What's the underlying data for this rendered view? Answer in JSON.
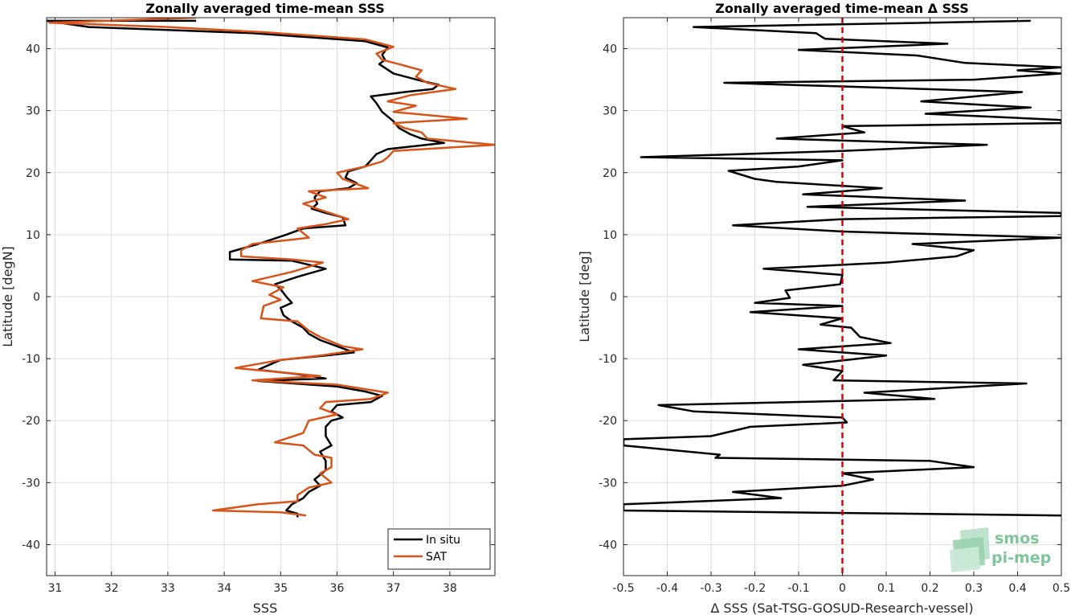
{
  "chart_data": [
    {
      "type": "line",
      "title": "Zonally averaged time-mean SSS",
      "xlabel": "SSS",
      "ylabel": "Latitude [degN]",
      "xlim": [
        30.85,
        38.8
      ],
      "ylim": [
        -45,
        45
      ],
      "xticks": [
        31,
        32,
        33,
        34,
        35,
        36,
        37,
        38
      ],
      "yticks": [
        -40,
        -30,
        -20,
        -10,
        0,
        10,
        20,
        30,
        40
      ],
      "grid": true,
      "legend": {
        "position": "bottom-right",
        "entries": [
          "In situ",
          "SAT"
        ]
      },
      "series": [
        {
          "name": "In situ",
          "color": "#000000",
          "points": [
            [
              33.5,
              44.5
            ],
            [
              30.85,
              44.5
            ],
            [
              31.6,
              43.5
            ],
            [
              34.5,
              42.5
            ],
            [
              36.5,
              41.2
            ],
            [
              36.9,
              40.2
            ],
            [
              36.8,
              39.0
            ],
            [
              36.85,
              38.2
            ],
            [
              36.75,
              37.5
            ],
            [
              37.0,
              36.0
            ],
            [
              37.5,
              34.8
            ],
            [
              37.8,
              34.2
            ],
            [
              37.7,
              33.5
            ],
            [
              37.2,
              33.0
            ],
            [
              36.6,
              32.3
            ],
            [
              36.7,
              31.2
            ],
            [
              36.8,
              29.8
            ],
            [
              37.0,
              28.3
            ],
            [
              37.1,
              27.2
            ],
            [
              37.3,
              26.2
            ],
            [
              37.5,
              25.5
            ],
            [
              37.9,
              24.8
            ],
            [
              37.4,
              24.3
            ],
            [
              36.9,
              23.8
            ],
            [
              36.7,
              23.0
            ],
            [
              36.6,
              22.0
            ],
            [
              36.5,
              21.0
            ],
            [
              36.2,
              20.2
            ],
            [
              36.15,
              19.2
            ],
            [
              36.35,
              18.3
            ],
            [
              36.2,
              17.5
            ],
            [
              35.7,
              17.0
            ],
            [
              35.6,
              16.0
            ],
            [
              35.65,
              15.0
            ],
            [
              35.55,
              14.2
            ],
            [
              35.8,
              13.5
            ],
            [
              36.1,
              12.8
            ],
            [
              36.15,
              11.5
            ],
            [
              35.4,
              11.0
            ],
            [
              35.1,
              10.0
            ],
            [
              34.6,
              8.5
            ],
            [
              34.1,
              7.2
            ],
            [
              34.1,
              6.0
            ],
            [
              35.2,
              5.8
            ],
            [
              35.8,
              4.5
            ],
            [
              35.3,
              3.2
            ],
            [
              34.9,
              2.0
            ],
            [
              35.0,
              1.2
            ],
            [
              35.1,
              0.0
            ],
            [
              35.2,
              -1.0
            ],
            [
              35.0,
              -1.8
            ],
            [
              35.05,
              -3.0
            ],
            [
              35.2,
              -4.0
            ],
            [
              35.4,
              -5.0
            ],
            [
              35.5,
              -6.0
            ],
            [
              35.7,
              -7.0
            ],
            [
              36.0,
              -8.0
            ],
            [
              36.3,
              -9.0
            ],
            [
              35.8,
              -9.5
            ],
            [
              35.0,
              -10.2
            ],
            [
              34.8,
              -11.0
            ],
            [
              34.6,
              -11.8
            ],
            [
              35.3,
              -12.5
            ],
            [
              35.8,
              -13.2
            ],
            [
              34.6,
              -13.6
            ],
            [
              36.0,
              -14.5
            ],
            [
              36.5,
              -15.3
            ],
            [
              36.8,
              -16.0
            ],
            [
              36.6,
              -17.0
            ],
            [
              36.0,
              -17.5
            ],
            [
              35.9,
              -18.5
            ],
            [
              36.1,
              -19.5
            ],
            [
              35.9,
              -20.0
            ],
            [
              35.8,
              -21.0
            ],
            [
              35.8,
              -22.5
            ],
            [
              35.9,
              -24.0
            ],
            [
              35.7,
              -25.0
            ],
            [
              35.8,
              -26.5
            ],
            [
              35.8,
              -28.0
            ],
            [
              35.6,
              -29.5
            ],
            [
              35.7,
              -30.5
            ],
            [
              35.5,
              -31.5
            ],
            [
              35.4,
              -32.5
            ],
            [
              35.2,
              -33.5
            ],
            [
              35.1,
              -34.5
            ],
            [
              35.3,
              -35.0
            ],
            [
              35.3,
              -35.6
            ]
          ]
        },
        {
          "name": "SAT",
          "color": "#d95319",
          "points": [
            [
              33.5,
              45.0
            ],
            [
              30.9,
              44.2
            ],
            [
              33.0,
              43.5
            ],
            [
              34.8,
              42.6
            ],
            [
              36.5,
              41.5
            ],
            [
              37.0,
              40.3
            ],
            [
              36.7,
              39.2
            ],
            [
              36.8,
              38.2
            ],
            [
              37.1,
              37.5
            ],
            [
              37.5,
              36.5
            ],
            [
              37.4,
              35.5
            ],
            [
              37.6,
              34.5
            ],
            [
              38.1,
              33.5
            ],
            [
              37.3,
              32.5
            ],
            [
              36.9,
              31.5
            ],
            [
              37.4,
              30.8
            ],
            [
              37.0,
              29.8
            ],
            [
              38.3,
              28.7
            ],
            [
              37.0,
              28.0
            ],
            [
              37.2,
              27.2
            ],
            [
              37.5,
              26.5
            ],
            [
              37.6,
              25.5
            ],
            [
              38.8,
              24.5
            ],
            [
              37.0,
              23.5
            ],
            [
              36.9,
              22.5
            ],
            [
              36.8,
              21.8
            ],
            [
              36.5,
              21.0
            ],
            [
              36.0,
              20.0
            ],
            [
              36.1,
              19.0
            ],
            [
              36.55,
              17.5
            ],
            [
              35.5,
              17.0
            ],
            [
              35.8,
              16.0
            ],
            [
              35.4,
              15.0
            ],
            [
              35.6,
              14.3
            ],
            [
              36.2,
              12.5
            ],
            [
              35.8,
              11.7
            ],
            [
              35.3,
              11.0
            ],
            [
              35.5,
              9.5
            ],
            [
              34.5,
              8.5
            ],
            [
              34.3,
              7.5
            ],
            [
              34.3,
              6.5
            ],
            [
              35.2,
              6.0
            ],
            [
              35.75,
              5.5
            ],
            [
              35.2,
              4.0
            ],
            [
              34.5,
              2.5
            ],
            [
              35.05,
              1.5
            ],
            [
              34.8,
              0.3
            ],
            [
              35.0,
              -0.5
            ],
            [
              34.7,
              -1.5
            ],
            [
              34.65,
              -3.5
            ],
            [
              35.3,
              -4.0
            ],
            [
              35.5,
              -5.5
            ],
            [
              35.7,
              -6.5
            ],
            [
              36.1,
              -8.0
            ],
            [
              36.45,
              -8.5
            ],
            [
              35.7,
              -9.5
            ],
            [
              35.0,
              -10.2
            ],
            [
              34.2,
              -11.5
            ],
            [
              35.0,
              -12.2
            ],
            [
              35.7,
              -12.8
            ],
            [
              34.5,
              -13.5
            ],
            [
              36.0,
              -14.2
            ],
            [
              36.9,
              -15.5
            ],
            [
              36.6,
              -16.5
            ],
            [
              35.8,
              -17.0
            ],
            [
              35.7,
              -18.0
            ],
            [
              36.0,
              -19.0
            ],
            [
              35.5,
              -20.0
            ],
            [
              35.4,
              -22.0
            ],
            [
              34.9,
              -23.5
            ],
            [
              35.4,
              -24.0
            ],
            [
              35.6,
              -25.5
            ],
            [
              35.9,
              -26.0
            ],
            [
              35.9,
              -27.5
            ],
            [
              35.7,
              -28.5
            ],
            [
              35.9,
              -30.0
            ],
            [
              35.5,
              -30.8
            ],
            [
              35.3,
              -32.0
            ],
            [
              35.3,
              -33.0
            ],
            [
              34.6,
              -33.5
            ],
            [
              33.8,
              -34.5
            ],
            [
              35.0,
              -34.8
            ],
            [
              35.45,
              -35.3
            ]
          ]
        }
      ]
    },
    {
      "type": "line",
      "title": "Zonally averaged time-mean Δ SSS",
      "xlabel": "Δ SSS (Sat-TSG-GOSUD-Research-vessel)",
      "ylabel": "Latitude [deg]",
      "xlim": [
        -0.5,
        0.5
      ],
      "ylim": [
        -45,
        45
      ],
      "xticks": [
        -0.5,
        -0.4,
        -0.3,
        -0.2,
        -0.1,
        0,
        0.1,
        0.2,
        0.3,
        0.4,
        0.5
      ],
      "yticks": [
        -40,
        -30,
        -20,
        -10,
        0,
        10,
        20,
        30,
        40
      ],
      "grid": true,
      "reference_line": {
        "x": 0,
        "color": "#e00000",
        "style": "dashed"
      },
      "series": [
        {
          "color": "#000000",
          "points": [
            [
              0.43,
              44.5
            ],
            [
              -0.34,
              43.5
            ],
            [
              -0.06,
              42.5
            ],
            [
              -0.04,
              41.6
            ],
            [
              0.24,
              40.8
            ],
            [
              -0.1,
              39.8
            ],
            [
              0.17,
              38.9
            ],
            [
              0.28,
              37.7
            ],
            [
              0.5,
              37.0
            ],
            [
              0.4,
              36.5
            ],
            [
              0.5,
              36.0
            ],
            [
              0.3,
              35.0
            ],
            [
              -0.27,
              34.5
            ],
            [
              0.41,
              33.0
            ],
            [
              0.18,
              31.5
            ],
            [
              0.43,
              30.5
            ],
            [
              0.19,
              29.5
            ],
            [
              0.5,
              28.5
            ],
            [
              0.5,
              28.0
            ],
            [
              0.0,
              27.5
            ],
            [
              0.05,
              26.5
            ],
            [
              -0.15,
              25.5
            ],
            [
              0.33,
              24.5
            ],
            [
              0.0,
              23.5
            ],
            [
              -0.46,
              22.5
            ],
            [
              0.0,
              22.0
            ],
            [
              -0.1,
              21.0
            ],
            [
              -0.26,
              20.3
            ],
            [
              -0.2,
              19.0
            ],
            [
              -0.15,
              18.5
            ],
            [
              0.09,
              17.5
            ],
            [
              -0.09,
              16.5
            ],
            [
              0.28,
              15.5
            ],
            [
              -0.08,
              14.5
            ],
            [
              0.5,
              13.5
            ],
            [
              0.5,
              13.0
            ],
            [
              0.0,
              12.5
            ],
            [
              -0.25,
              11.5
            ],
            [
              0.0,
              10.5
            ],
            [
              0.5,
              9.5
            ],
            [
              0.16,
              8.5
            ],
            [
              0.3,
              7.5
            ],
            [
              0.26,
              6.5
            ],
            [
              0.1,
              5.5
            ],
            [
              -0.18,
              4.5
            ],
            [
              0.0,
              3.5
            ],
            [
              -0.005,
              2.0
            ],
            [
              -0.13,
              1.0
            ],
            [
              -0.12,
              -0.2
            ],
            [
              -0.2,
              -1.0
            ],
            [
              0.0,
              -1.5
            ],
            [
              -0.21,
              -2.5
            ],
            [
              0.0,
              -3.5
            ],
            [
              -0.05,
              -4.5
            ],
            [
              0.02,
              -5.0
            ],
            [
              0.04,
              -6.5
            ],
            [
              0.11,
              -7.5
            ],
            [
              -0.1,
              -8.5
            ],
            [
              0.1,
              -9.5
            ],
            [
              -0.09,
              -11.0
            ],
            [
              0.0,
              -12.0
            ],
            [
              -0.02,
              -13.5
            ],
            [
              0.42,
              -14.0
            ],
            [
              0.05,
              -15.5
            ],
            [
              0.21,
              -16.5
            ],
            [
              -0.42,
              -17.5
            ],
            [
              -0.34,
              -18.5
            ],
            [
              0.0,
              -19.5
            ],
            [
              0.01,
              -20.3
            ],
            [
              -0.21,
              -21.0
            ],
            [
              -0.3,
              -22.5
            ],
            [
              -0.5,
              -23.0
            ],
            [
              -0.5,
              -24.0
            ],
            [
              -0.28,
              -25.5
            ],
            [
              -0.29,
              -26.0
            ],
            [
              0.2,
              -26.5
            ],
            [
              0.3,
              -27.5
            ],
            [
              0.0,
              -28.5
            ],
            [
              0.07,
              -29.5
            ],
            [
              0.0,
              -30.5
            ],
            [
              -0.25,
              -31.5
            ],
            [
              -0.14,
              -32.5
            ],
            [
              -0.5,
              -33.5
            ],
            [
              -0.5,
              -34.5
            ],
            [
              0.5,
              -35.3
            ]
          ]
        }
      ]
    }
  ],
  "logo": {
    "line1": "smos",
    "line2": "pi-mep"
  }
}
